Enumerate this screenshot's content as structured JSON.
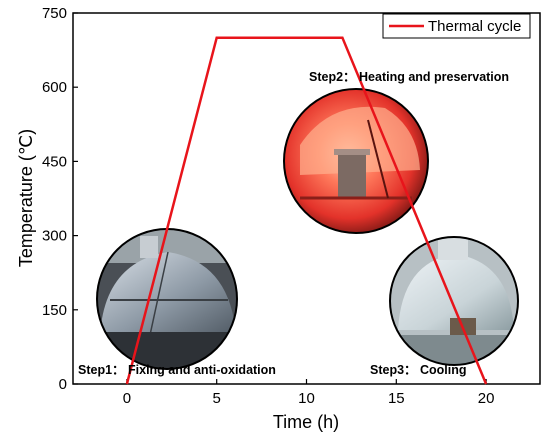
{
  "chart_data": {
    "type": "line",
    "xlabel": "Time (h)",
    "ylabel": "Temperature (℃)",
    "xlim": [
      -3,
      23
    ],
    "ylim": [
      0,
      750
    ],
    "xticks": [
      0,
      5,
      10,
      15,
      20
    ],
    "yticks": [
      0,
      150,
      300,
      450,
      600,
      750
    ],
    "grid": false,
    "legend_position": "top-right",
    "series": [
      {
        "name": "Thermal cycle",
        "color": "#e8141b",
        "x": [
          0,
          5,
          12,
          20
        ],
        "y": [
          0,
          700,
          700,
          0
        ]
      }
    ],
    "annotations": [
      {
        "text": "Step1： Fixing and anti-oxidation",
        "photo": "welded-dome-fixture"
      },
      {
        "text": "Step2： Heating and preservation",
        "photo": "glowing-furnace"
      },
      {
        "text": "Step3： Cooling",
        "photo": "cooled-dome"
      }
    ]
  }
}
